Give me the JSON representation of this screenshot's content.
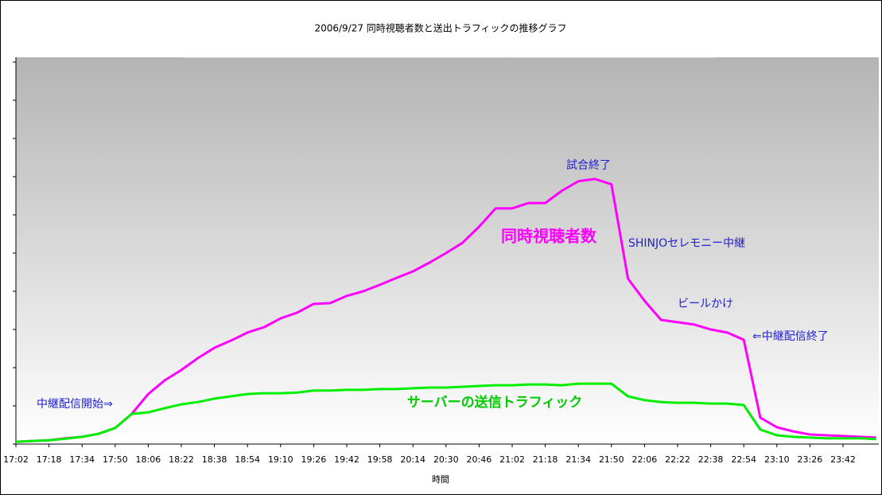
{
  "chart_data": {
    "type": "line",
    "title": "2006/9/27 同時視聴者数と送出トラフィックの推移グラフ",
    "x_label": "時間",
    "categories": [
      "17:02",
      null,
      "17:18",
      null,
      "17:34",
      null,
      "17:50",
      null,
      "18:06",
      null,
      "18:22",
      null,
      "18:38",
      null,
      "18:54",
      null,
      "19:10",
      null,
      "19:26",
      null,
      "19:42",
      null,
      "19:58",
      null,
      "20:14",
      null,
      "20:30",
      null,
      "20:46",
      null,
      "21:02",
      null,
      "21:18",
      null,
      "21:34",
      null,
      "21:50",
      null,
      "22:06",
      null,
      "22:22",
      null,
      "22:38",
      null,
      "22:54",
      null,
      "23:10",
      null,
      "23:26",
      null,
      "23:42",
      null,
      null
    ],
    "series": [
      {
        "name": "同時視聴者数",
        "color": "#ff00ff",
        "values": [
          0.6,
          0.8,
          1.0,
          1.5,
          1.9,
          2.7,
          4.2,
          7.9,
          13.1,
          16.7,
          19.4,
          22.5,
          25.2,
          27.1,
          29.2,
          30.6,
          32.9,
          34.4,
          36.7,
          36.9,
          38.8,
          40,
          41.7,
          43.5,
          45.2,
          47.5,
          50,
          52.7,
          56.9,
          61.7,
          61.7,
          63.1,
          63.1,
          66.3,
          68.8,
          69.4,
          68,
          43.3,
          37.5,
          32.5,
          31.9,
          31.3,
          30,
          29.2,
          27.3,
          6.9,
          4.4,
          3.3,
          2.5,
          2.3,
          2.1,
          1.9,
          1.7
        ]
      },
      {
        "name": "サーバーの送信トラフィック",
        "color": "#00ee00",
        "values": [
          0.6,
          0.8,
          1.0,
          1.4,
          1.9,
          2.7,
          4.2,
          7.9,
          8.3,
          9.4,
          10.4,
          11,
          11.9,
          12.5,
          13.1,
          13.3,
          13.3,
          13.5,
          14,
          14,
          14.2,
          14.2,
          14.4,
          14.4,
          14.6,
          14.8,
          14.8,
          15,
          15.2,
          15.4,
          15.4,
          15.6,
          15.6,
          15.4,
          15.8,
          15.8,
          15.8,
          12.5,
          11.5,
          11,
          10.8,
          10.8,
          10.6,
          10.6,
          10.2,
          3.8,
          2.3,
          1.9,
          1.7,
          1.5,
          1.5,
          1.5,
          1.3
        ]
      }
    ],
    "annotations": [
      "中継配信開始⇒",
      "試合終了",
      "SHINJOセレモニー中継",
      "ビールかけ",
      "⇐中継配信終了"
    ],
    "ylim": [
      0,
      100
    ],
    "yticks": [
      0,
      10,
      20,
      30,
      40,
      50,
      60,
      70,
      80,
      90,
      100
    ]
  }
}
